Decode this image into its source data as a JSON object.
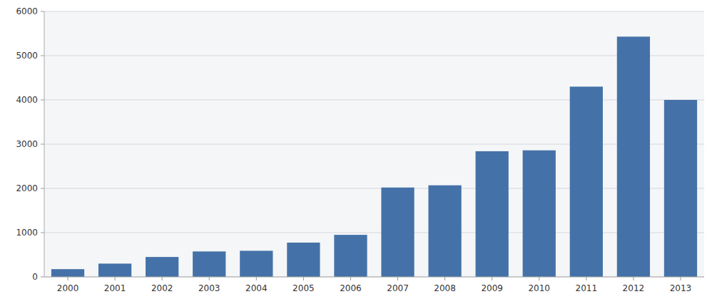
{
  "chart_data": {
    "type": "bar",
    "categories": [
      "2000",
      "2001",
      "2002",
      "2003",
      "2004",
      "2005",
      "2006",
      "2007",
      "2008",
      "2009",
      "2010",
      "2011",
      "2012",
      "2013"
    ],
    "values": [
      175,
      300,
      450,
      575,
      590,
      775,
      950,
      2020,
      2070,
      2840,
      2860,
      4300,
      5430,
      4000
    ],
    "color": "#4472a8",
    "ylim": [
      0,
      6000
    ],
    "yticks": [
      0,
      1000,
      2000,
      3000,
      4000,
      5000,
      6000
    ],
    "grid": true
  }
}
